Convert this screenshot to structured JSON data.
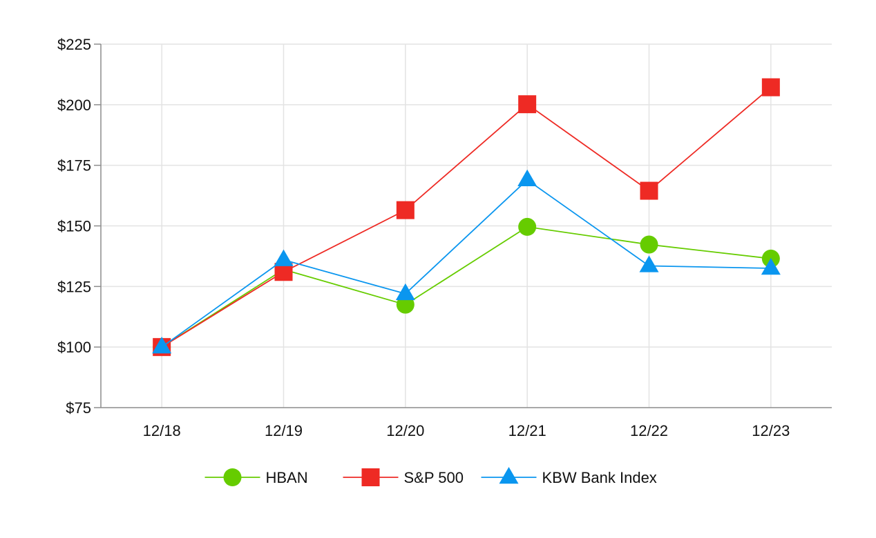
{
  "chart_data": {
    "type": "line",
    "title": "",
    "xlabel": "",
    "ylabel": "",
    "categories": [
      "12/18",
      "12/19",
      "12/20",
      "12/21",
      "12/22",
      "12/23"
    ],
    "ylim": [
      75,
      225
    ],
    "yticks": [
      75,
      100,
      125,
      150,
      175,
      200,
      225
    ],
    "ytick_labels": [
      "$75",
      "$100",
      "$125",
      "$150",
      "$175",
      "$200",
      "$225"
    ],
    "grid": true,
    "legend_position": "bottom-center",
    "series": [
      {
        "name": "HBAN",
        "values": [
          100,
          132,
          117.5,
          149.6,
          142.3,
          136.5
        ],
        "color": "#66cc00",
        "marker": "circle"
      },
      {
        "name": "S&P 500",
        "values": [
          100,
          131,
          156.5,
          200.2,
          164.5,
          207.2
        ],
        "color": "#ee2a24",
        "marker": "square"
      },
      {
        "name": "KBW Bank Index",
        "values": [
          100,
          136,
          122,
          169,
          133.5,
          132.5
        ],
        "color": "#0a96ef",
        "marker": "triangle"
      }
    ]
  }
}
